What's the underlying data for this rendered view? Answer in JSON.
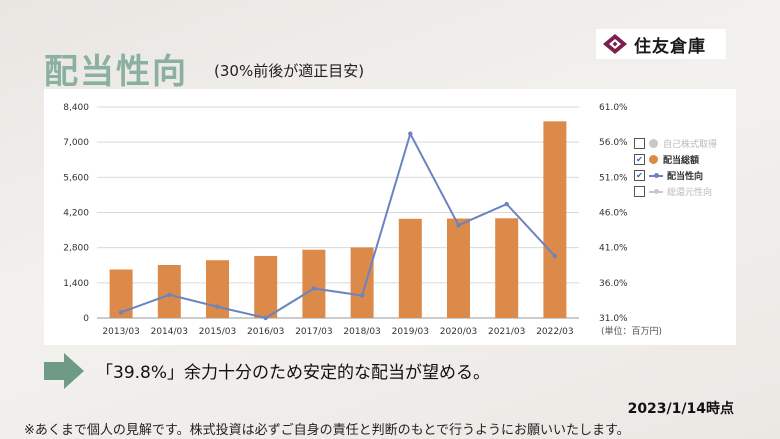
{
  "header": {
    "title": "配当性向",
    "subtitle": "(30%前後が適正目安)",
    "logo_text": "住友倉庫"
  },
  "colors": {
    "bar": "#dc8a4a",
    "line": "#6b84c0",
    "title": "#8ab0a0",
    "arrow": "#6f9a86",
    "legend_off": "#c8c8c8"
  },
  "chart_data": {
    "type": "bar",
    "categories": [
      "2013/03",
      "2014/03",
      "2015/03",
      "2016/03",
      "2017/03",
      "2018/03",
      "2019/03",
      "2020/03",
      "2021/03",
      "2022/03"
    ],
    "series": [
      {
        "name": "配当総額",
        "type": "bar",
        "axis": "left",
        "values": [
          1930,
          2110,
          2300,
          2470,
          2720,
          2810,
          3950,
          3960,
          3970,
          7830
        ]
      },
      {
        "name": "配当性向",
        "type": "line",
        "axis": "right",
        "values": [
          31.8,
          34.3,
          32.6,
          31.0,
          35.2,
          34.2,
          57.2,
          44.2,
          47.2,
          39.8
        ]
      }
    ],
    "y_left": {
      "ticks": [
        "0",
        "1,400",
        "2,800",
        "4,200",
        "5,600",
        "7,000",
        "8,400"
      ],
      "ylim": [
        0,
        8400
      ]
    },
    "y_right": {
      "ticks": [
        "31.0%",
        "36.0%",
        "41.0%",
        "46.0%",
        "51.0%",
        "56.0%",
        "61.0%"
      ],
      "ylim": [
        31,
        61
      ]
    },
    "unit_label": "(単位：百万円)",
    "legend": {
      "position": "right",
      "items": [
        {
          "label": "自己株式取得",
          "checked": false,
          "marker": "dot",
          "color": "#c8c8c8"
        },
        {
          "label": "配当総額",
          "checked": true,
          "marker": "dot",
          "color": "#dc8a4a"
        },
        {
          "label": "配当性向",
          "checked": true,
          "marker": "line",
          "color": "#6b84c0"
        },
        {
          "label": "総還元性向",
          "checked": false,
          "marker": "line",
          "color": "#c8c8c8"
        }
      ]
    },
    "grid": true
  },
  "comment": "「39.8%」余力十分のため安定的な配当が望める。",
  "date": "2023/1/14時点",
  "disclaimer": "※あくまで個人の見解です。株式投資は必ずご自身の責任と判断のもとで行うようにお願いいたします。"
}
